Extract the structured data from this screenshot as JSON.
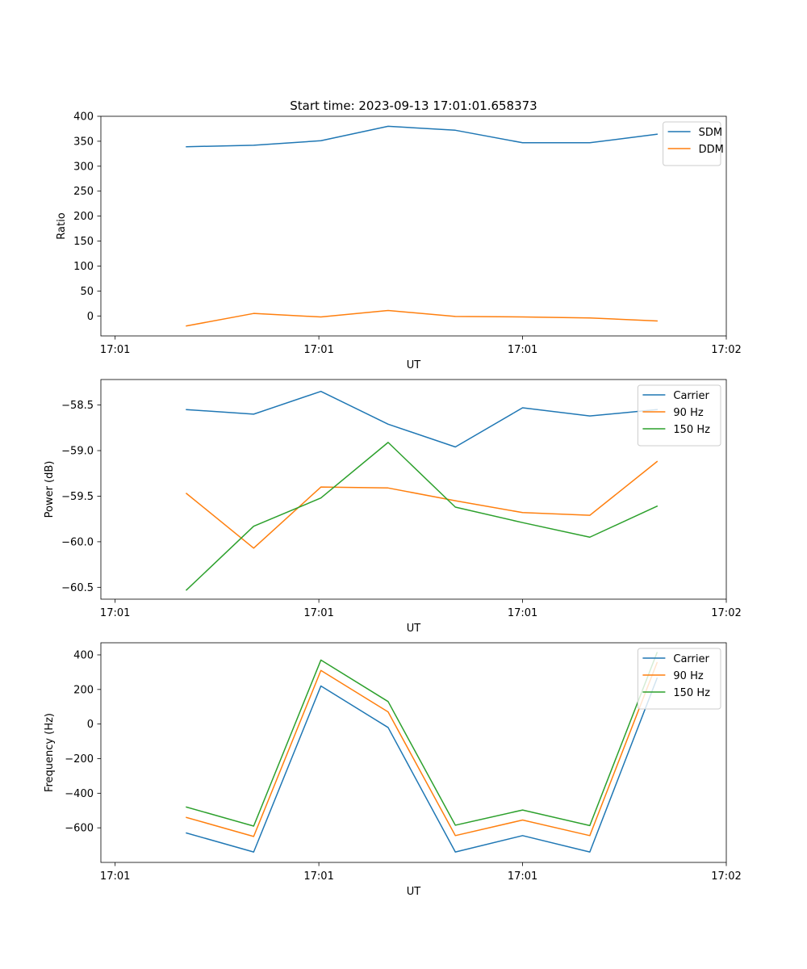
{
  "title": "Start time: 2023-09-13 17:01:01.658373",
  "chart_data": [
    {
      "type": "line",
      "xlabel": "UT",
      "ylabel": "Ratio",
      "x": [
        0.35,
        0.68,
        1.01,
        1.34,
        1.67,
        2.0,
        2.33,
        2.66
      ],
      "xlim": [
        -0.07,
        3.0
      ],
      "xticks": [
        0,
        1,
        2,
        3
      ],
      "xtick_labels": [
        "17:01",
        "17:01",
        "17:01",
        "17:02"
      ],
      "ylim": [
        -40,
        400
      ],
      "yticks": [
        0,
        50,
        100,
        150,
        200,
        250,
        300,
        350,
        400
      ],
      "legend": "top-right",
      "series": [
        {
          "name": "SDM",
          "color": "#1f77b4",
          "values": [
            339,
            342,
            351,
            380,
            372,
            347,
            347,
            364
          ]
        },
        {
          "name": "DDM",
          "color": "#ff7f0e",
          "values": [
            -20,
            5,
            -2,
            11,
            -1,
            -2,
            -4,
            -10
          ]
        }
      ]
    },
    {
      "type": "line",
      "xlabel": "UT",
      "ylabel": "Power (dB)",
      "x": [
        0.35,
        0.68,
        1.01,
        1.34,
        1.67,
        2.0,
        2.33,
        2.66
      ],
      "xlim": [
        -0.07,
        3.0
      ],
      "xticks": [
        0,
        1,
        2,
        3
      ],
      "xtick_labels": [
        "17:01",
        "17:01",
        "17:01",
        "17:02"
      ],
      "ylim": [
        -60.63,
        -58.22
      ],
      "yticks": [
        -60.5,
        -60.0,
        -59.5,
        -59.0,
        -58.5
      ],
      "ytick_labels": [
        "−60.5",
        "−60.0",
        "−59.5",
        "−59.0",
        "−58.5"
      ],
      "legend": "top-right",
      "series": [
        {
          "name": "Carrier",
          "color": "#1f77b4",
          "values": [
            -58.55,
            -58.6,
            -58.35,
            -58.71,
            -58.96,
            -58.53,
            -58.62,
            -58.55
          ]
        },
        {
          "name": "90 Hz",
          "color": "#ff7f0e",
          "values": [
            -59.47,
            -60.07,
            -59.4,
            -59.41,
            -59.55,
            -59.68,
            -59.71,
            -59.12
          ]
        },
        {
          "name": "150 Hz",
          "color": "#2ca02c",
          "values": [
            -60.53,
            -59.83,
            -59.52,
            -58.91,
            -59.62,
            -59.79,
            -59.95,
            -59.61
          ]
        }
      ]
    },
    {
      "type": "line",
      "xlabel": "UT",
      "ylabel": "Frequency (Hz)",
      "x": [
        0.35,
        0.68,
        1.01,
        1.34,
        1.67,
        2.0,
        2.33,
        2.66
      ],
      "xlim": [
        -0.07,
        3.0
      ],
      "xticks": [
        0,
        1,
        2,
        3
      ],
      "xtick_labels": [
        "17:01",
        "17:01",
        "17:01",
        "17:02"
      ],
      "ylim": [
        -800,
        470
      ],
      "yticks": [
        -600,
        -400,
        -200,
        0,
        200,
        400
      ],
      "ytick_labels": [
        "−600",
        "−400",
        "−200",
        "0",
        "200",
        "400"
      ],
      "legend": "top-right",
      "series": [
        {
          "name": "Carrier",
          "color": "#1f77b4",
          "values": [
            -630,
            -740,
            220,
            -20,
            -740,
            -645,
            -740,
            265
          ]
        },
        {
          "name": "90 Hz",
          "color": "#ff7f0e",
          "values": [
            -540,
            -650,
            310,
            70,
            -645,
            -555,
            -645,
            355
          ]
        },
        {
          "name": "150 Hz",
          "color": "#2ca02c",
          "values": [
            -480,
            -590,
            370,
            130,
            -585,
            -497,
            -587,
            413
          ]
        }
      ]
    }
  ]
}
